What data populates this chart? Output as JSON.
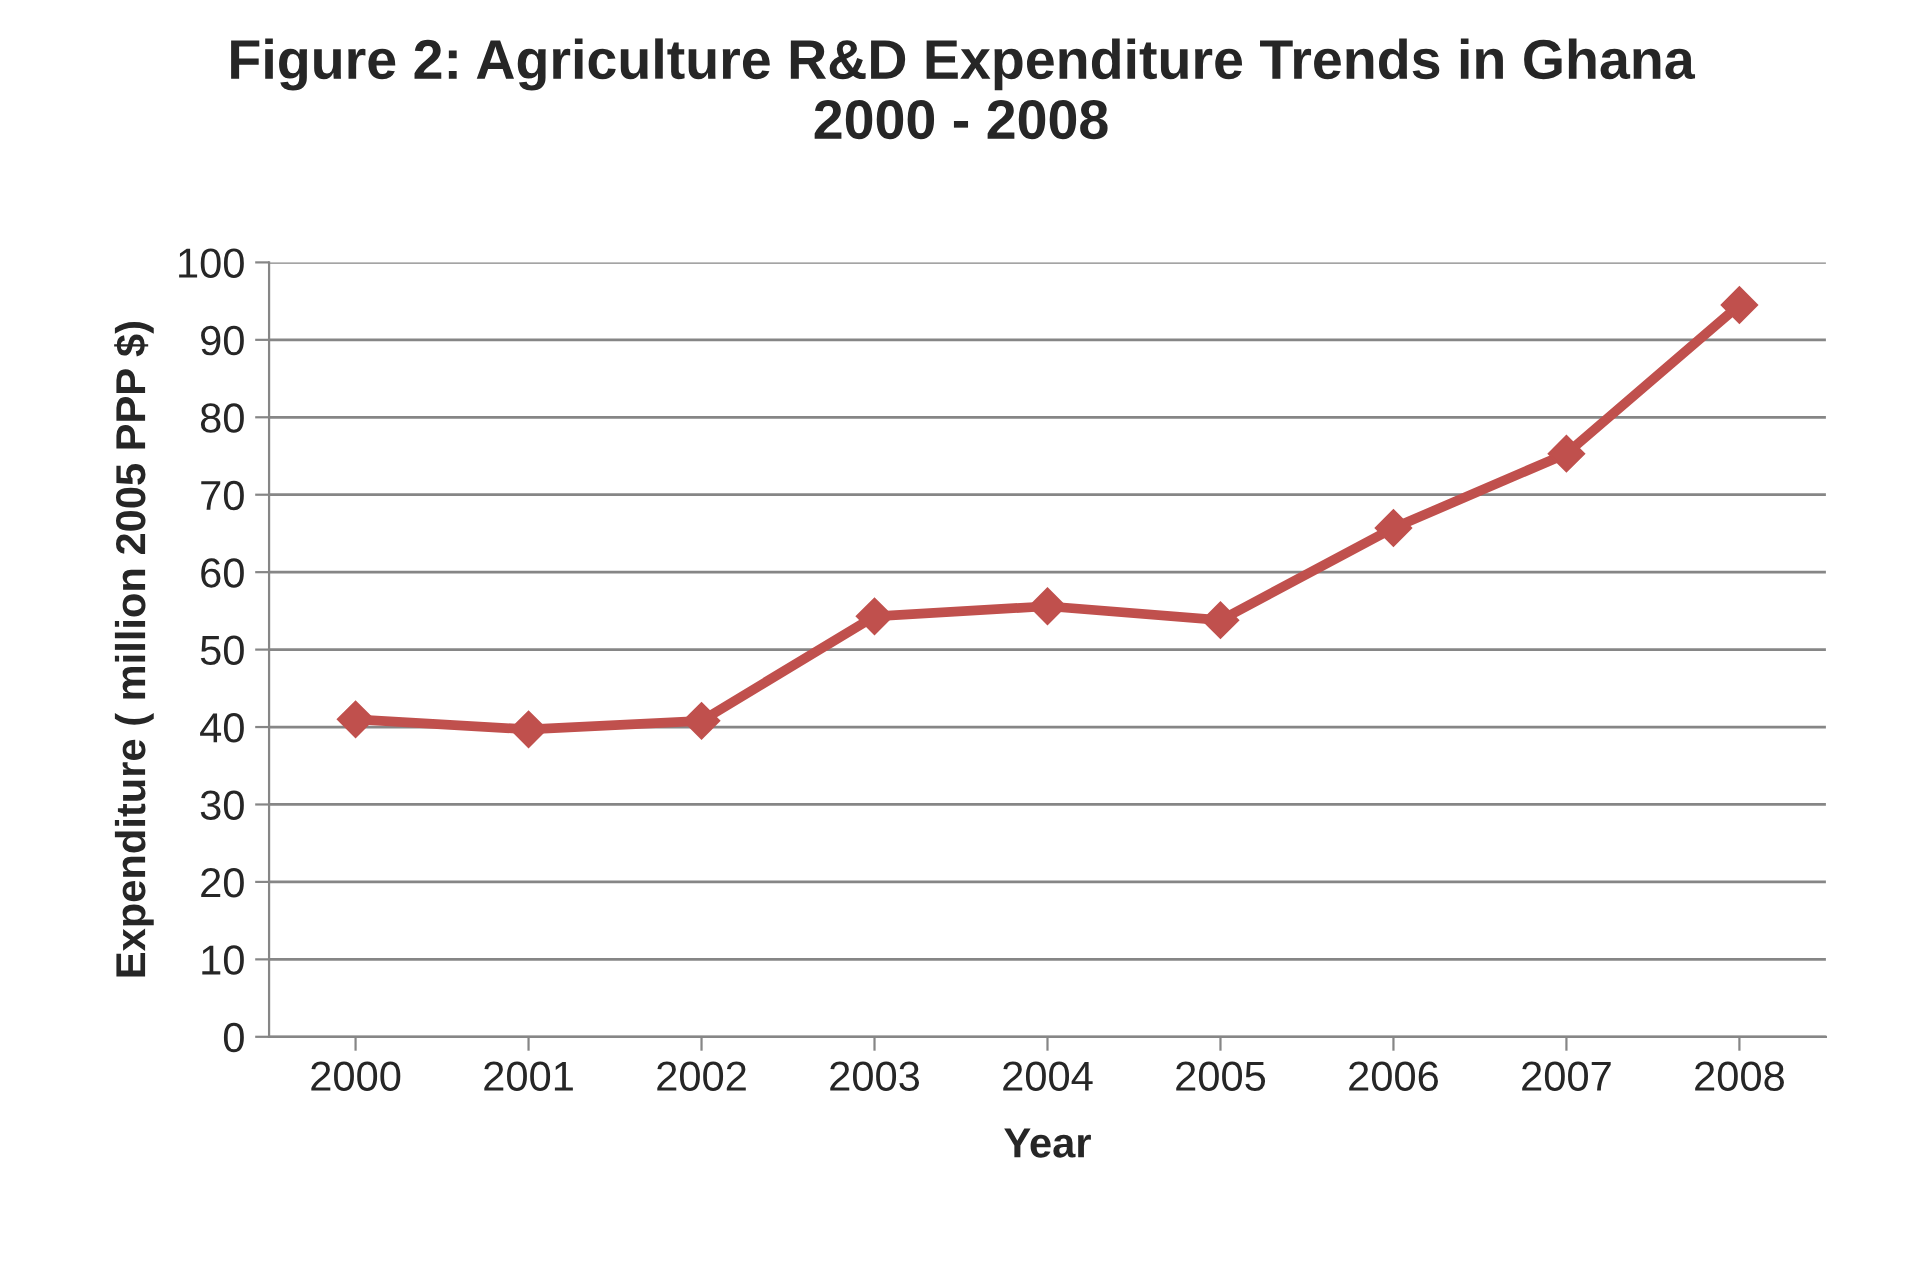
{
  "chart_data": {
    "type": "line",
    "title": "Figure 2: Agriculture R&D Expenditure Trends in Ghana\n2000 - 2008",
    "xlabel": "Year",
    "ylabel": "Expenditure ( million 2005 PPP $)",
    "categories": [
      "2000",
      "2001",
      "2002",
      "2003",
      "2004",
      "2005",
      "2006",
      "2007",
      "2008"
    ],
    "series": [
      {
        "color": "#c0504d",
        "values": [
          41.0,
          39.7,
          40.8,
          54.3,
          55.6,
          53.8,
          65.7,
          75.3,
          94.5
        ]
      }
    ],
    "ylim": [
      0,
      100
    ],
    "yticks": [
      0,
      10,
      20,
      30,
      40,
      50,
      60,
      70,
      80,
      90,
      100
    ],
    "grid": "y",
    "marker": "diamond",
    "line_style": "solid",
    "legend": false
  }
}
